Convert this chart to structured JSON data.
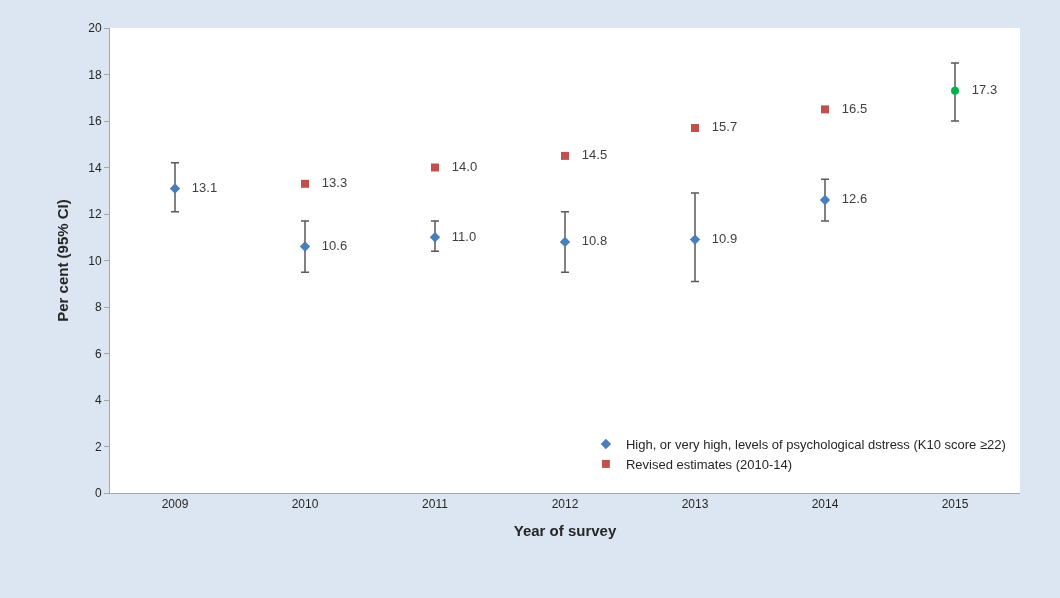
{
  "chart_data": {
    "type": "scatter",
    "xlabel": "Year of survey",
    "ylabel": "Per cent (95% CI)",
    "categories": [
      "2009",
      "2010",
      "2011",
      "2012",
      "2013",
      "2014",
      "2015"
    ],
    "series": [
      {
        "name": "High, or very high, levels of psychological dstress (K10 score ≥22)",
        "color": "#4a7ebb",
        "marker": "diamond",
        "values": [
          13.1,
          10.6,
          11.0,
          10.8,
          10.9,
          12.6,
          null
        ],
        "value_labels": [
          "13.1",
          "10.6",
          "11.0",
          "10.8",
          "10.9",
          "12.6",
          null
        ],
        "errors": [
          [
            12.1,
            14.2
          ],
          [
            9.5,
            11.7
          ],
          [
            10.4,
            11.7
          ],
          [
            9.5,
            12.1
          ],
          [
            9.1,
            12.9
          ],
          [
            11.7,
            13.5
          ],
          null
        ]
      },
      {
        "name": "Revised estimates (2010-14)",
        "color": "#c0504d",
        "marker": "square",
        "values": [
          null,
          13.3,
          14.0,
          14.5,
          15.7,
          16.5,
          null
        ],
        "value_labels": [
          null,
          "13.3",
          "14.0",
          "14.5",
          "15.7",
          "16.5",
          null
        ]
      },
      {
        "color": "#00b050",
        "marker": "circle",
        "values": [
          null,
          null,
          null,
          null,
          null,
          null,
          17.3
        ],
        "value_labels": [
          null,
          null,
          null,
          null,
          null,
          null,
          "17.3"
        ],
        "errors": [
          null,
          null,
          null,
          null,
          null,
          null,
          [
            16.0,
            18.5
          ]
        ]
      }
    ],
    "ylim": [
      0,
      20
    ],
    "yticks": [
      0,
      2,
      4,
      6,
      8,
      10,
      12,
      14,
      16,
      18,
      20
    ],
    "legend": "bottom right"
  }
}
